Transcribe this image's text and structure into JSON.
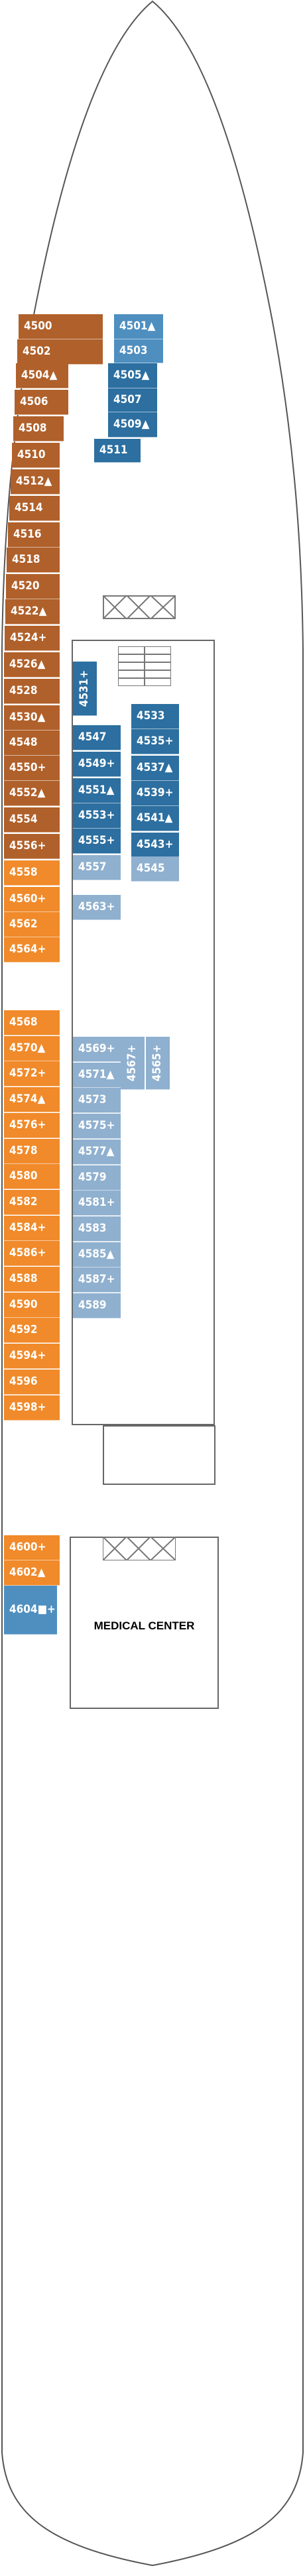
{
  "colors": {
    "forward_copper": "#b0602a",
    "orange": "#f08a2a",
    "deep_blue": "#2c6fa0",
    "mid_blue": "#4e8fc0",
    "light_blue": "#8fb0cf",
    "hull_line": "#555555"
  },
  "icon_legend": {
    "▲": "triangle-icon",
    "+": "plus-icon",
    "⇕": "connecting-arrows-icon",
    "■": "square-icon"
  },
  "cabins": {
    "forward_port": [
      "4500",
      "4502",
      "4504▲",
      "4506",
      "4508",
      "4510",
      "4512▲",
      "4514",
      "4516",
      "4518",
      "4520",
      "4522▲",
      "4524+",
      "4526▲",
      "4528",
      "4530▲",
      "4548",
      "4550+",
      "4552▲",
      "4554",
      "4556+"
    ],
    "forward_center": [
      "4501▲",
      "4503",
      "4505▲",
      "4507",
      "4509▲",
      "4511"
    ],
    "port_mid": [
      "4558",
      "4560+",
      "4562",
      "4564+"
    ],
    "port_aft": [
      "4568",
      "4570▲",
      "4572+",
      "4574▲",
      "4576+",
      "4578",
      "4580",
      "4582",
      "4584+",
      "4586+",
      "4588",
      "4590",
      "4592",
      "4594+",
      "4596",
      "4598+"
    ],
    "aft_port": [
      "4600+",
      "4602▲",
      "4604■+"
    ],
    "inner_left": [
      "4547",
      "4549+",
      "4551▲",
      "4553+",
      "4555+",
      "4557",
      "4563+"
    ],
    "inner_right": [
      "4533",
      "4535+",
      "4537▲",
      "4539+",
      "4541▲",
      "4543+",
      "4545"
    ],
    "inner_vertical": [
      "4531+",
      "4567+",
      "4565+"
    ],
    "inner_aft": [
      "4569+",
      "4571▲",
      "4573",
      "4575+",
      "4577▲",
      "4579",
      "4581+",
      "4583",
      "4585▲",
      "4587+",
      "4589"
    ]
  },
  "labels": {
    "medical_center": "MEDICAL CENTER"
  }
}
